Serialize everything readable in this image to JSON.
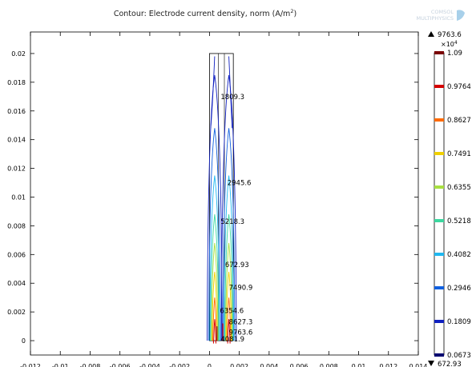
{
  "chart_data": {
    "type": "contour",
    "title": "Contour: Electrode current density, norm (A/m",
    "title_superscript": "2",
    "title_suffix": ")",
    "watermark": [
      "COMSOL",
      "MULTIPHYSICS"
    ],
    "x_axis": {
      "range": [
        -0.012,
        0.014
      ],
      "ticks": [
        -0.012,
        -0.01,
        -0.008,
        -0.006,
        -0.004,
        -0.002,
        0,
        0.002,
        0.004,
        0.006,
        0.008,
        0.01,
        0.012,
        0.014
      ],
      "tick_labels": [
        "-0.012",
        "-0.01",
        "-0.008",
        "-0.006",
        "-0.004",
        "-0.002",
        "0",
        "0.002",
        "0.004",
        "0.006",
        "0.008",
        "0.01",
        "0.012",
        "0.014"
      ]
    },
    "y_axis": {
      "range": [
        -0.001,
        0.0215
      ],
      "ticks": [
        0,
        0.002,
        0.004,
        0.006,
        0.008,
        0.01,
        0.012,
        0.014,
        0.016,
        0.018,
        0.02
      ],
      "tick_labels": [
        "0",
        "0.002",
        "0.004",
        "0.006",
        "0.008",
        "0.01",
        "0.012",
        "0.014",
        "0.016",
        "0.018",
        "0.02"
      ]
    },
    "domain": {
      "x_min": 0,
      "x_max": 0.0016,
      "y_min": 0,
      "y_max": 0.02,
      "inner_lines_x": [
        0.0006,
        0.001
      ]
    },
    "contour_labels": [
      {
        "text": "1809.3",
        "x": 0.00075,
        "y": 0.017
      },
      {
        "text": "2945.6",
        "x": 0.0012,
        "y": 0.011
      },
      {
        "text": "5218.3",
        "x": 0.00075,
        "y": 0.0083
      },
      {
        "text": "672.93",
        "x": 0.00105,
        "y": 0.0053
      },
      {
        "text": "7490.9",
        "x": 0.0013,
        "y": 0.0037
      },
      {
        "text": "6354.6",
        "x": 0.0007,
        "y": 0.0021
      },
      {
        "text": "8627.3",
        "x": 0.0013,
        "y": 0.0013
      },
      {
        "text": "9763.6",
        "x": 0.0013,
        "y": 0.0006
      },
      {
        "text": "4081.9",
        "x": 0.00075,
        "y": 0.0001
      }
    ],
    "legend": {
      "max_label": "9763.6",
      "min_label": "672.93",
      "multiplier": "×10",
      "multiplier_exp": "4",
      "levels": [
        {
          "value": 1.09,
          "label": "1.09",
          "color": "#7a0000"
        },
        {
          "value": 0.9764,
          "label": "0.9764",
          "color": "#d40000"
        },
        {
          "value": 0.8627,
          "label": "0.8627",
          "color": "#ff6a00"
        },
        {
          "value": 0.7491,
          "label": "0.7491",
          "color": "#f0d000"
        },
        {
          "value": 0.6355,
          "label": "0.6355",
          "color": "#a8e040"
        },
        {
          "value": 0.5218,
          "label": "0.5218",
          "color": "#3cd8a0"
        },
        {
          "value": 0.4082,
          "label": "0.4082",
          "color": "#20b8f0"
        },
        {
          "value": 0.2946,
          "label": "0.2946",
          "color": "#1060e0"
        },
        {
          "value": 0.1809,
          "label": "0.1809",
          "color": "#1020c0"
        },
        {
          "value": 0.0673,
          "label": "0.0673",
          "color": "#000070"
        }
      ]
    }
  }
}
